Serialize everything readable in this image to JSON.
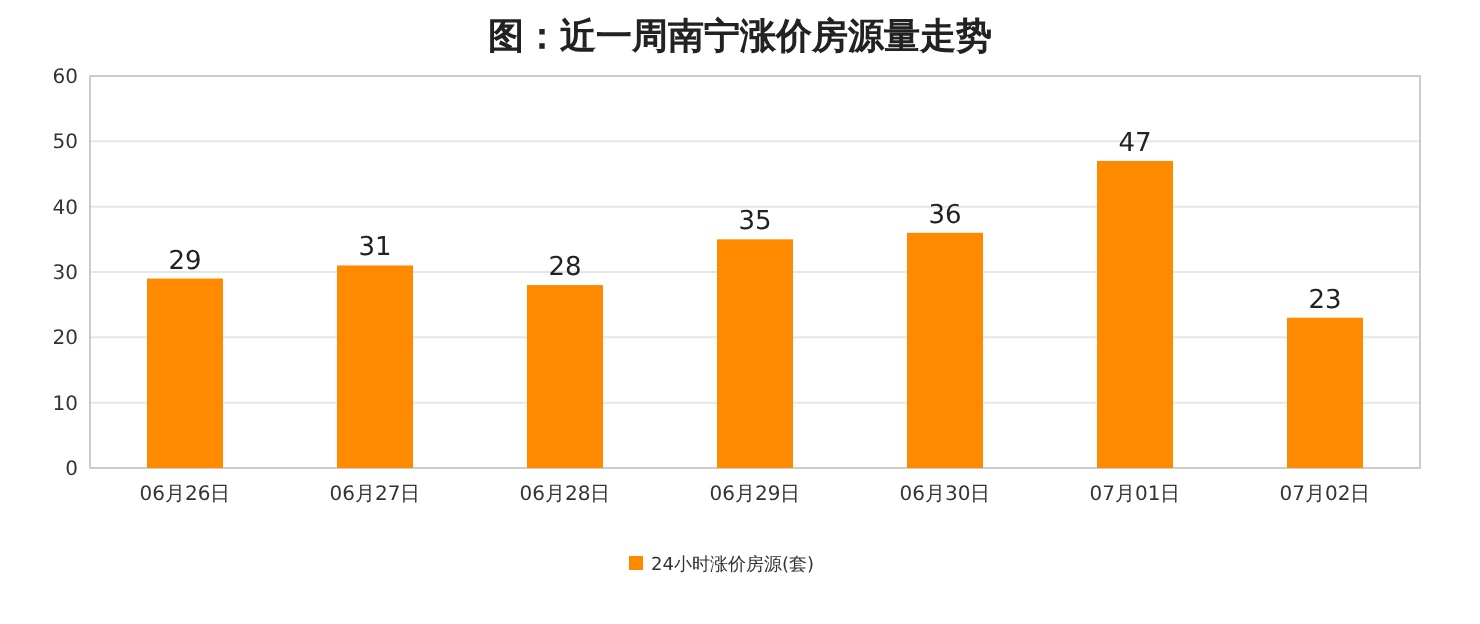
{
  "chart_data": {
    "type": "bar",
    "title": "图：近一周南宁涨价房源量走势",
    "categories": [
      "06月26日",
      "06月27日",
      "06月28日",
      "06月29日",
      "06月30日",
      "07月01日",
      "07月02日"
    ],
    "series": [
      {
        "name": "24小时涨价房源(套)",
        "color": "#ff8a00",
        "values": [
          29,
          31,
          28,
          35,
          36,
          47,
          23
        ]
      }
    ],
    "ylim": [
      0,
      60
    ],
    "yticks": [
      0,
      10,
      20,
      30,
      40,
      50,
      60
    ],
    "grid": "y",
    "legend": "bottom",
    "data_labels": true
  }
}
